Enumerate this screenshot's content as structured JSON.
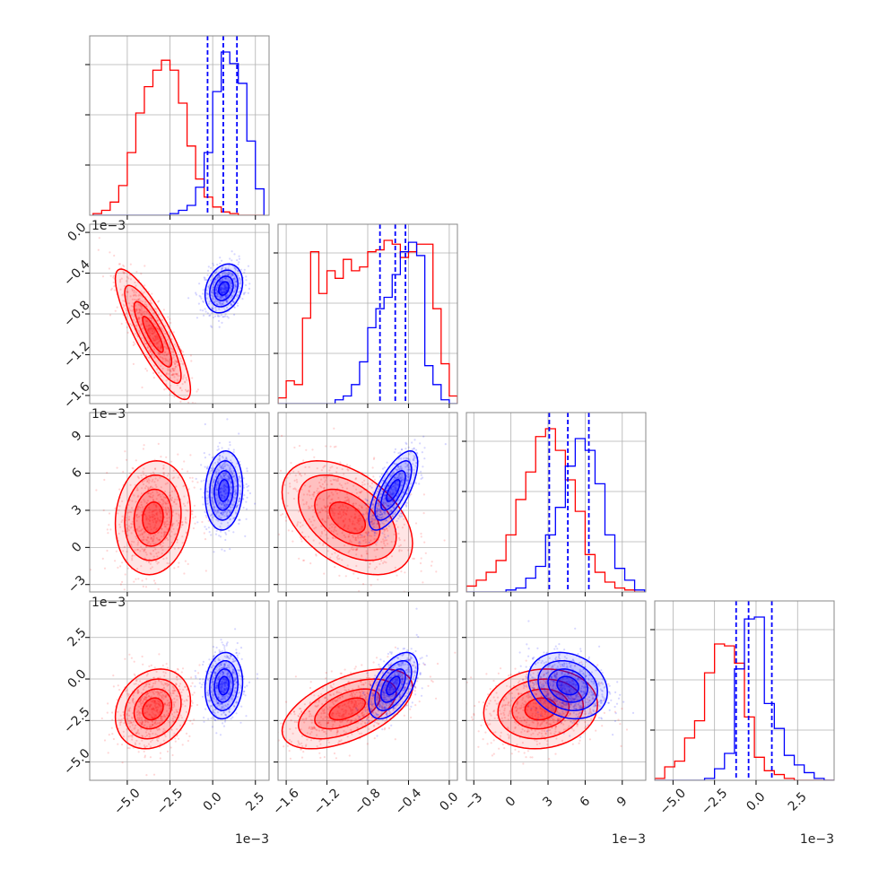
{
  "chart_data": {
    "type": "corner",
    "colors": {
      "model_a": "#ff0000",
      "model_b": "#0000ff",
      "grid": "#b0b0b0",
      "frame": "#888888"
    },
    "parameters": [
      {
        "range": [
          -7.2,
          3.3
        ],
        "ticks": [
          -5.0,
          -2.5,
          0.0,
          2.5
        ],
        "tick_labels": [
          "−5.0",
          "−2.5",
          "0.0",
          "2.5"
        ],
        "scale_label": "1e−3"
      },
      {
        "range": [
          -1.68,
          0.08
        ],
        "ticks": [
          -1.6,
          -1.2,
          -0.8,
          -0.4,
          0.0
        ],
        "tick_labels": [
          "−1.6",
          "−1.2",
          "−0.8",
          "−0.4",
          "0.0"
        ],
        "scale_label": "1e−3"
      },
      {
        "range": [
          -3.6,
          10.9
        ],
        "ticks": [
          -3,
          0,
          3,
          6,
          9
        ],
        "tick_labels": [
          "−3",
          "0",
          "3",
          "6",
          "9"
        ],
        "scale_label": "1e−3"
      },
      {
        "range": [
          -6.1,
          4.7
        ],
        "ticks": [
          -5.0,
          -2.5,
          0.0,
          2.5
        ],
        "tick_labels": [
          "−5.0",
          "−2.5",
          "0.0",
          "2.5"
        ],
        "scale_label": "1e−3"
      }
    ],
    "histograms": [
      {
        "bin_edges": [
          -7.0,
          -6.5,
          -6.0,
          -5.5,
          -5.0,
          -4.5,
          -4.0,
          -3.5,
          -3.0,
          -2.5,
          -2.0,
          -1.5,
          -1.0,
          -0.5,
          0.0,
          0.5,
          1.0,
          1.5,
          2.0,
          2.5,
          3.0
        ],
        "red": [
          1,
          3,
          8,
          18,
          38,
          62,
          78,
          88,
          94,
          88,
          68,
          42,
          22,
          11,
          5,
          2,
          1,
          0,
          0,
          0
        ],
        "blue": [
          0,
          0,
          0,
          0,
          0,
          0,
          0,
          0,
          0,
          1,
          3,
          6,
          17,
          38,
          75,
          99,
          92,
          80,
          45,
          16
        ],
        "quantiles_blue": [
          -0.3,
          0.62,
          1.42
        ]
      },
      {
        "bin_edges": [
          -1.68,
          -1.6,
          -1.52,
          -1.44,
          -1.36,
          -1.28,
          -1.2,
          -1.12,
          -1.04,
          -0.96,
          -0.88,
          -0.8,
          -0.72,
          -0.64,
          -0.56,
          -0.48,
          -0.4,
          -0.32,
          -0.24,
          -0.16,
          -0.08,
          0.0,
          0.08
        ],
        "red": [
          3,
          12,
          10,
          45,
          80,
          58,
          70,
          66,
          76,
          70,
          72,
          80,
          81,
          86,
          84,
          77,
          80,
          84,
          84,
          50,
          21,
          4
        ],
        "blue": [
          0,
          0,
          0,
          0,
          0,
          0,
          0,
          2,
          4,
          10,
          22,
          40,
          50,
          56,
          68,
          80,
          85,
          78,
          20,
          10,
          2,
          0
        ],
        "quantiles_blue": [
          -0.68,
          -0.53,
          -0.43
        ]
      },
      {
        "bin_edges": [
          -3.6,
          -2.8,
          -2.0,
          -1.2,
          -0.4,
          0.4,
          1.2,
          2.0,
          2.8,
          3.6,
          4.4,
          5.2,
          6.0,
          6.8,
          7.6,
          8.4,
          9.2,
          10.0,
          10.8
        ],
        "red": [
          3,
          6,
          10,
          16,
          29,
          47,
          61,
          79,
          83,
          72,
          57,
          41,
          19,
          10,
          5,
          2,
          1,
          0
        ],
        "blue": [
          0,
          0,
          0,
          0,
          1,
          2,
          7,
          13,
          29,
          43,
          64,
          78,
          72,
          55,
          29,
          12,
          6,
          1
        ],
        "quantiles_blue": [
          3.1,
          4.6,
          6.3
        ]
      },
      {
        "bin_edges": [
          -6.1,
          -5.5,
          -4.9,
          -4.3,
          -3.7,
          -3.1,
          -2.5,
          -1.9,
          -1.3,
          -0.7,
          -0.1,
          0.5,
          1.1,
          1.7,
          2.3,
          2.9,
          3.5,
          4.1,
          4.7
        ],
        "red": [
          1,
          7,
          10,
          22,
          31,
          56,
          71,
          70,
          61,
          33,
          12,
          5,
          3,
          1,
          0,
          0,
          0,
          0
        ],
        "blue": [
          0,
          0,
          0,
          0,
          0,
          1,
          6,
          14,
          58,
          84,
          85,
          40,
          27,
          13,
          8,
          4,
          1,
          0
        ],
        "quantiles_blue": [
          -1.2,
          -0.45,
          0.95
        ]
      }
    ],
    "populations": {
      "red": {
        "means": [
          -3.5,
          -1.0,
          2.4,
          -1.8
        ],
        "sds": [
          1.1,
          0.32,
          2.3,
          1.2
        ],
        "correlations": {
          "0-1": -0.85,
          "0-2": 0.1,
          "0-3": 0.2,
          "1-2": -0.45,
          "1-3": 0.55,
          "2-3": 0.1
        }
      },
      "blue": {
        "means": [
          0.65,
          -0.55,
          4.6,
          -0.4
        ],
        "sds": [
          0.55,
          0.12,
          1.6,
          1.0
        ],
        "correlations": {
          "0-1": 0.25,
          "0-2": 0.1,
          "0-3": 0.1,
          "1-2": 0.7,
          "1-3": 0.55,
          "2-3": -0.2
        }
      }
    },
    "grid": true
  }
}
